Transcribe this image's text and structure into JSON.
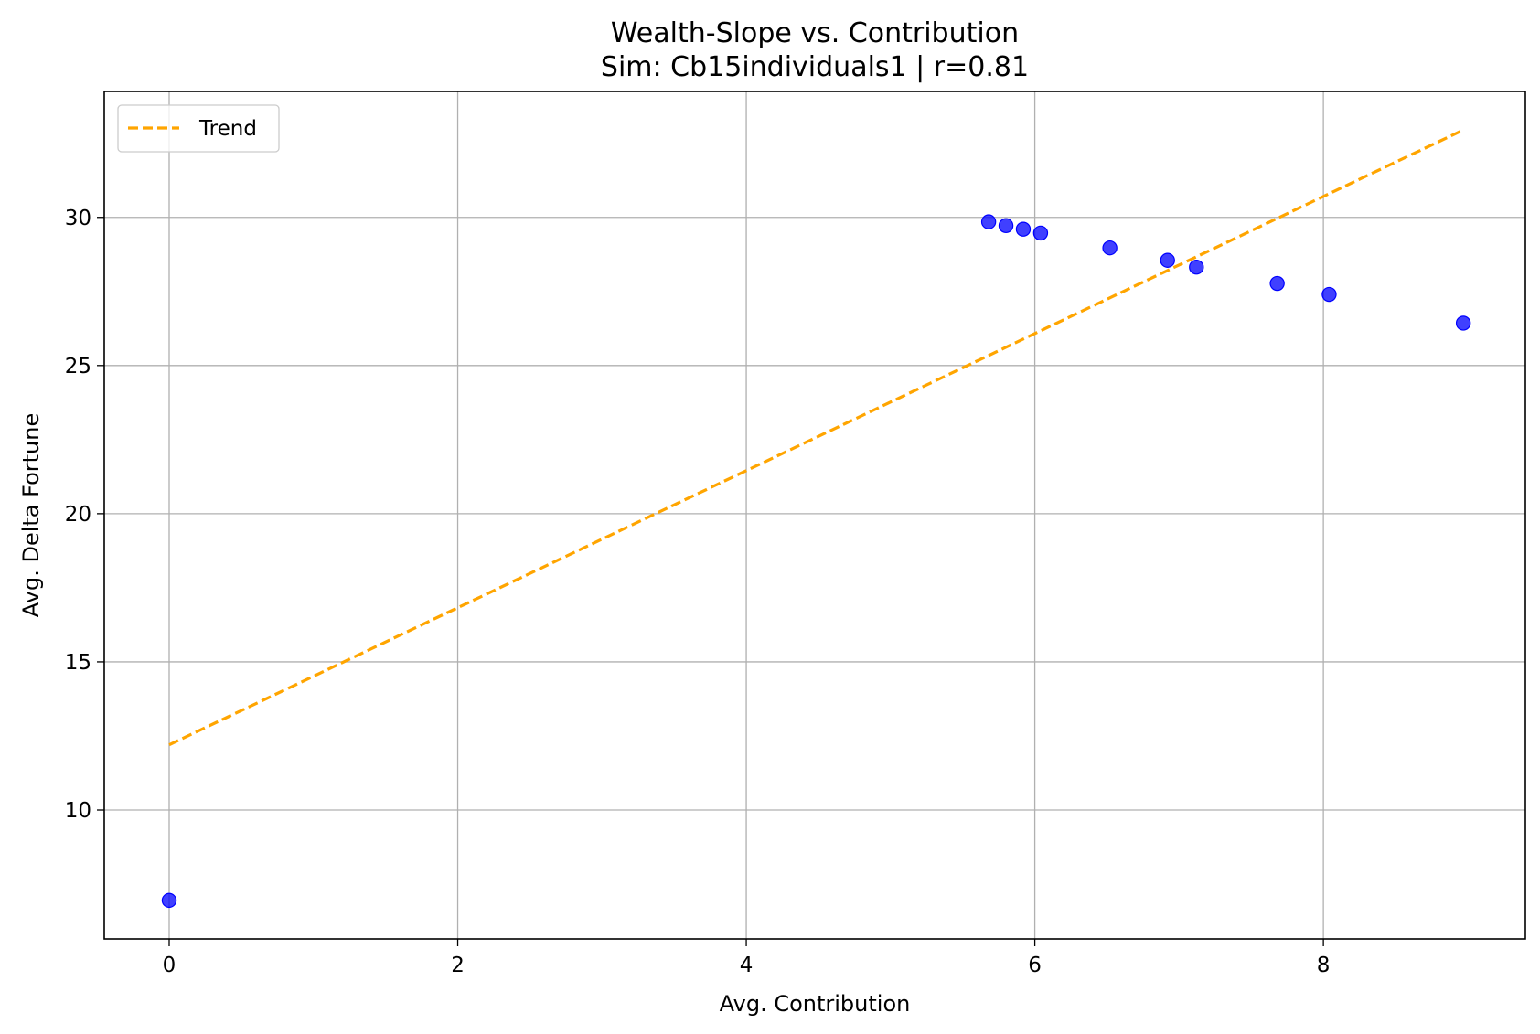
{
  "chart_data": {
    "type": "scatter",
    "title": "Wealth-Slope vs. Contribution",
    "subtitle": "Sim: Cb15individuals1 | r=0.81",
    "xlabel": "Avg. Contribution",
    "ylabel": "Avg. Delta Fortune",
    "xlim": [
      -0.45,
      9.4
    ],
    "ylim": [
      5.65,
      34.25
    ],
    "x_ticks": [
      0,
      2,
      4,
      6,
      8
    ],
    "y_ticks": [
      10,
      15,
      20,
      25,
      30
    ],
    "grid": true,
    "legend_position": "top-left",
    "points": {
      "color": "#0000ff",
      "x": [
        0.0,
        5.68,
        5.8,
        5.92,
        6.04,
        6.52,
        6.92,
        7.12,
        7.68,
        8.04,
        8.97
      ],
      "y": [
        6.95,
        29.85,
        29.72,
        29.6,
        29.47,
        28.97,
        28.55,
        28.32,
        27.77,
        27.4,
        26.43
      ]
    },
    "trend": {
      "name": "Trend",
      "color": "#ffa500",
      "x_start": 0.0,
      "y_start": 12.2,
      "x_end": 8.97,
      "y_end": 32.95
    }
  }
}
